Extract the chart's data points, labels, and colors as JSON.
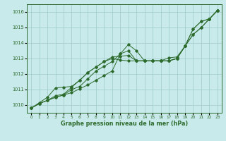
{
  "xlabel": "Graphe pression niveau de la mer (hPa)",
  "xlim": [
    -0.5,
    23.5
  ],
  "ylim": [
    1009.5,
    1016.5
  ],
  "yticks": [
    1010,
    1011,
    1012,
    1013,
    1014,
    1015,
    1016
  ],
  "xticks": [
    0,
    1,
    2,
    3,
    4,
    5,
    6,
    7,
    8,
    9,
    10,
    11,
    12,
    13,
    14,
    15,
    16,
    17,
    18,
    19,
    20,
    21,
    22,
    23
  ],
  "bg_color": "#c8eaea",
  "grid_color": "#9dc8c8",
  "line_color": "#2d6b2d",
  "series": [
    [
      1009.8,
      1010.1,
      1010.3,
      1010.5,
      1010.65,
      1010.8,
      1011.05,
      1011.3,
      1011.6,
      1011.9,
      1012.2,
      1013.3,
      1013.5,
      1012.85,
      1012.85,
      1012.85,
      1012.85,
      1012.85,
      1013.0,
      1013.8,
      1014.9,
      1015.4,
      1015.55,
      1016.1
    ],
    [
      1009.8,
      1010.1,
      1010.3,
      1010.5,
      1010.65,
      1011.0,
      1011.2,
      1011.7,
      1012.2,
      1012.5,
      1012.8,
      1013.3,
      1013.9,
      1013.5,
      1012.85,
      1012.85,
      1012.85,
      1012.85,
      1013.0,
      1013.8,
      1014.9,
      1015.4,
      1015.55,
      1016.1
    ],
    [
      1009.8,
      1010.1,
      1010.3,
      1010.6,
      1010.7,
      1011.15,
      1011.6,
      1012.1,
      1012.45,
      1012.8,
      1013.1,
      1013.15,
      1013.2,
      1012.85,
      1012.85,
      1012.85,
      1012.85,
      1013.05,
      1013.1,
      1013.8,
      1014.55,
      1015.0,
      1015.55,
      1016.1
    ],
    [
      1009.8,
      1010.15,
      1010.5,
      1011.1,
      1011.15,
      1011.2,
      1011.6,
      1012.1,
      1012.45,
      1012.8,
      1013.0,
      1012.9,
      1012.85,
      1012.85,
      1012.85,
      1012.85,
      1012.85,
      1012.85,
      1013.0,
      1013.8,
      1014.55,
      1015.0,
      1015.55,
      1016.1
    ]
  ]
}
